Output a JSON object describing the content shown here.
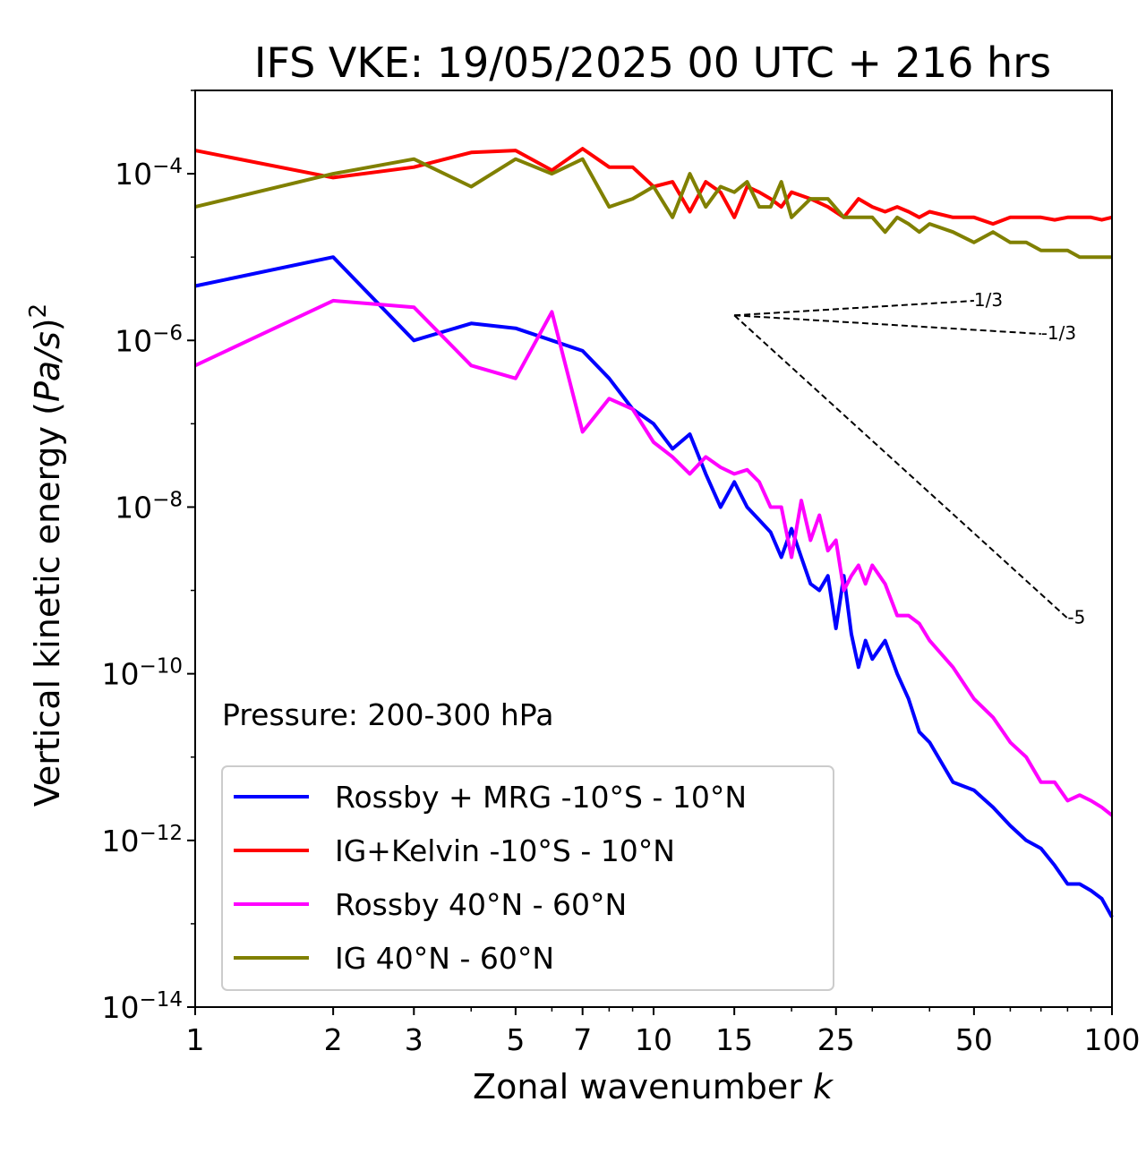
{
  "chart_data": {
    "type": "line",
    "title": "IFS VKE: 19/05/2025 00 UTC + 216 hrs",
    "xlabel": "Zonal wavenumber k",
    "ylabel": "Vertical kinetic energy (Pa/s)²",
    "xscale": "log",
    "yscale": "log",
    "xlim": [
      1,
      100
    ],
    "ylim": [
      1e-14,
      0.001
    ],
    "x_ticks": [
      "1",
      "2",
      "3",
      "5",
      "7",
      "10",
      "15",
      "25",
      "50",
      "100"
    ],
    "x_tick_values": [
      1,
      2,
      3,
      5,
      7,
      10,
      15,
      25,
      50,
      100
    ],
    "y_ticks": [
      {
        "value": 0.0001,
        "base": "10",
        "exp": "−4"
      },
      {
        "value": 1e-06,
        "base": "10",
        "exp": "−6"
      },
      {
        "value": 1e-08,
        "base": "10",
        "exp": "−8"
      },
      {
        "value": 1e-10,
        "base": "10",
        "exp": "−10"
      },
      {
        "value": 1e-12,
        "base": "10",
        "exp": "−12"
      },
      {
        "value": 1e-14,
        "base": "10",
        "exp": "−14"
      }
    ],
    "annotation": "Pressure: 200-300 hPa",
    "legend_position": "lower-left",
    "series": [
      {
        "name": "Rossby + MRG -10°S - 10°N",
        "color": "#0000ff",
        "x": [
          1,
          2,
          3,
          4,
          5,
          6,
          7,
          8,
          9,
          10,
          11,
          12,
          13,
          14,
          15,
          16,
          17,
          18,
          19,
          20,
          21,
          22,
          23,
          24,
          25,
          26,
          27,
          28,
          29,
          30,
          32,
          34,
          36,
          38,
          40,
          45,
          50,
          55,
          60,
          65,
          70,
          75,
          80,
          85,
          90,
          95,
          100
        ],
        "y": [
          4.5e-06,
          1e-05,
          1e-06,
          1.6e-06,
          1.4e-06,
          1e-06,
          7.5e-07,
          3.5e-07,
          1.5e-07,
          1e-07,
          5e-08,
          7.5e-08,
          2.5e-08,
          1e-08,
          2e-08,
          1e-08,
          7e-09,
          5e-09,
          2.5e-09,
          5.5e-09,
          2.5e-09,
          1.2e-09,
          1e-09,
          1.5e-09,
          3.5e-10,
          1.5e-09,
          3e-10,
          1.2e-10,
          2.5e-10,
          1.5e-10,
          2.5e-10,
          1e-10,
          5e-11,
          2e-11,
          1.5e-11,
          5e-12,
          4e-12,
          2.5e-12,
          1.5e-12,
          1e-12,
          8e-13,
          5e-13,
          3e-13,
          3e-13,
          2.5e-13,
          2e-13,
          1.2e-13
        ]
      },
      {
        "name": "IG+Kelvin -10°S - 10°N",
        "color": "#ff0000",
        "x": [
          1,
          2,
          3,
          4,
          5,
          6,
          7,
          8,
          9,
          10,
          11,
          12,
          13,
          14,
          15,
          16,
          17,
          18,
          19,
          20,
          22,
          24,
          26,
          28,
          30,
          32,
          34,
          36,
          38,
          40,
          45,
          50,
          55,
          60,
          65,
          70,
          75,
          80,
          85,
          90,
          95,
          100
        ],
        "y": [
          0.00019,
          9e-05,
          0.00012,
          0.00018,
          0.00019,
          0.00011,
          0.0002,
          0.00012,
          0.00012,
          7e-05,
          8e-05,
          3.5e-05,
          8e-05,
          6e-05,
          3e-05,
          7e-05,
          6e-05,
          5e-05,
          4e-05,
          6e-05,
          5e-05,
          4e-05,
          3e-05,
          5e-05,
          4e-05,
          3.5e-05,
          4e-05,
          3.5e-05,
          3e-05,
          3.5e-05,
          3e-05,
          3e-05,
          2.5e-05,
          3e-05,
          3e-05,
          3e-05,
          2.8e-05,
          3e-05,
          3e-05,
          3e-05,
          2.8e-05,
          3e-05
        ]
      },
      {
        "name": "Rossby 40°N - 60°N",
        "color": "#ff00ff",
        "x": [
          1,
          2,
          3,
          4,
          5,
          6,
          7,
          8,
          9,
          10,
          11,
          12,
          13,
          14,
          15,
          16,
          17,
          18,
          19,
          20,
          21,
          22,
          23,
          24,
          25,
          26,
          27,
          28,
          29,
          30,
          32,
          34,
          36,
          38,
          40,
          45,
          50,
          55,
          60,
          65,
          70,
          75,
          80,
          85,
          90,
          95,
          100
        ],
        "y": [
          5e-07,
          3e-06,
          2.5e-06,
          5e-07,
          3.5e-07,
          2.2e-06,
          8e-08,
          2e-07,
          1.5e-07,
          6e-08,
          4e-08,
          2.5e-08,
          4e-08,
          3e-08,
          2.5e-08,
          2.8e-08,
          2e-08,
          1e-08,
          1e-08,
          2.5e-09,
          1.2e-08,
          4e-09,
          8e-09,
          3e-09,
          4e-09,
          1e-09,
          1.5e-09,
          2e-09,
          1.2e-09,
          2e-09,
          1.2e-09,
          5e-10,
          5e-10,
          4e-10,
          2.5e-10,
          1.2e-10,
          5e-11,
          3e-11,
          1.5e-11,
          1e-11,
          5e-12,
          5e-12,
          3e-12,
          3.5e-12,
          3e-12,
          2.5e-12,
          2e-12
        ]
      },
      {
        "name": "IG 40°N - 60°N",
        "color": "#808000",
        "x": [
          1,
          2,
          3,
          4,
          5,
          6,
          7,
          8,
          9,
          10,
          11,
          12,
          13,
          14,
          15,
          16,
          17,
          18,
          19,
          20,
          22,
          24,
          26,
          28,
          30,
          32,
          34,
          36,
          38,
          40,
          45,
          50,
          55,
          60,
          65,
          70,
          75,
          80,
          85,
          90,
          95,
          100
        ],
        "y": [
          4e-05,
          0.0001,
          0.00015,
          7e-05,
          0.00015,
          0.0001,
          0.00015,
          4e-05,
          5e-05,
          7e-05,
          3e-05,
          0.0001,
          4e-05,
          7e-05,
          6e-05,
          8e-05,
          4e-05,
          4e-05,
          8e-05,
          3e-05,
          5e-05,
          5e-05,
          3e-05,
          3e-05,
          3e-05,
          2e-05,
          3e-05,
          2.5e-05,
          2e-05,
          2.5e-05,
          2e-05,
          1.5e-05,
          2e-05,
          1.5e-05,
          1.5e-05,
          1.2e-05,
          1.2e-05,
          1.2e-05,
          1e-05,
          1e-05,
          1e-05,
          1e-05
        ]
      }
    ],
    "reference_lines": [
      {
        "label": "1/3",
        "slope": 0.3333,
        "x0": 15,
        "y0": 2e-06,
        "x1": 50
      },
      {
        "label": "-1/3",
        "slope": -0.3333,
        "x0": 15,
        "y0": 2e-06,
        "x1": 70
      },
      {
        "label": "-5",
        "slope": -5,
        "x0": 15,
        "y0": 2e-06,
        "x1": 80
      }
    ]
  }
}
